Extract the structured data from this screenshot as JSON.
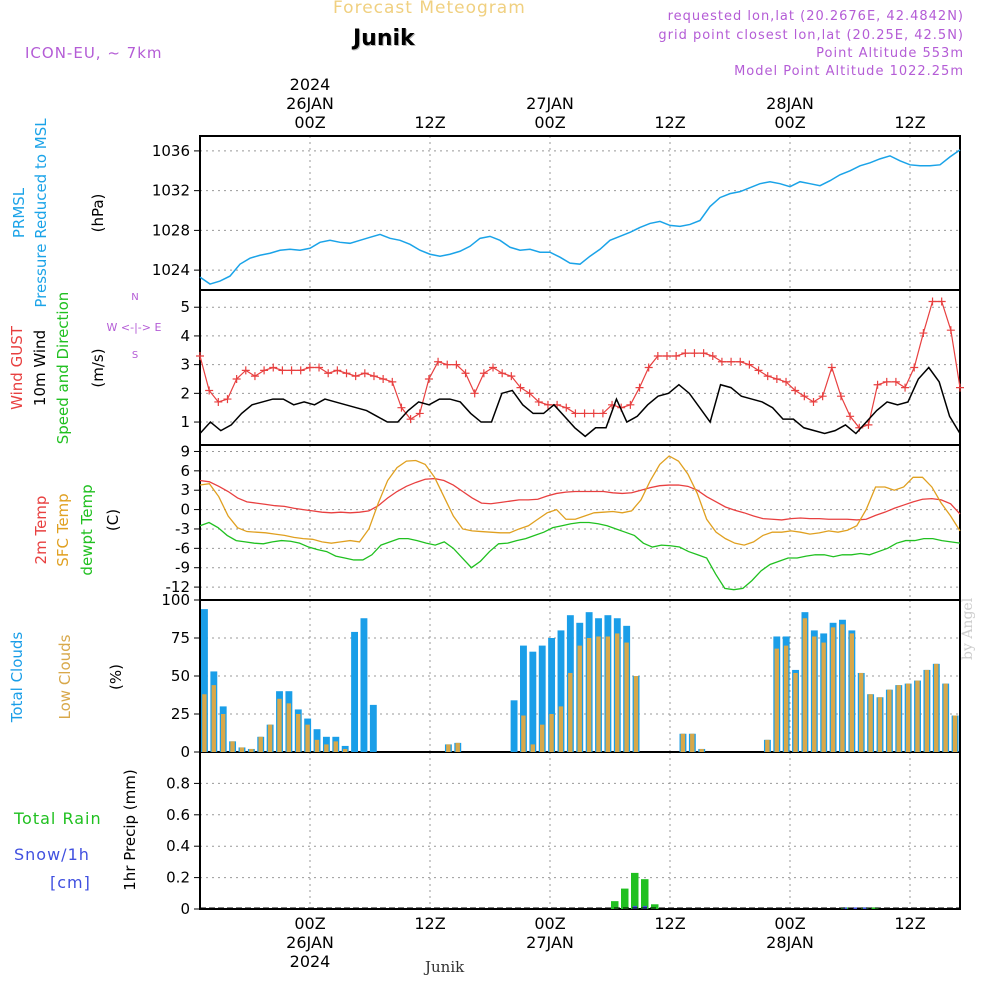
{
  "header": {
    "title": "Forecast Meteogram",
    "station": "Junik",
    "model": "ICON-EU, ~ 7km",
    "requested": "requested lon,lat (20.2676E, 42.4842N)",
    "gridpoint": "grid point closest lon,lat (20.25E, 42.5N)",
    "altitude": "Point Altitude 553m",
    "model_altitude": "Model Point Altitude 1022.25m",
    "bottom_station": "Junik",
    "credit": "by Angel"
  },
  "time_axis": {
    "top_labels": [
      {
        "lines": [
          "2024",
          "26JAN",
          "00Z"
        ],
        "h": 24
      },
      {
        "lines": [
          "12Z"
        ],
        "h": 36
      },
      {
        "lines": [
          "27JAN",
          "00Z"
        ],
        "h": 48
      },
      {
        "lines": [
          "12Z"
        ],
        "h": 60
      },
      {
        "lines": [
          "28JAN",
          "00Z"
        ],
        "h": 72
      },
      {
        "lines": [
          "12Z"
        ],
        "h": 84
      }
    ],
    "bottom_labels": [
      {
        "lines": [
          "00Z",
          "26JAN",
          "2024"
        ],
        "h": 24
      },
      {
        "lines": [
          "12Z"
        ],
        "h": 36
      },
      {
        "lines": [
          "00Z",
          "27JAN"
        ],
        "h": 48
      },
      {
        "lines": [
          "12Z"
        ],
        "h": 60
      },
      {
        "lines": [
          "00Z",
          "28JAN"
        ],
        "h": 72
      },
      {
        "lines": [
          "12Z"
        ],
        "h": 84
      }
    ],
    "range_hours": [
      13,
      89
    ]
  },
  "panel_labels": {
    "pressure": {
      "labels": [
        "PRMSL",
        "Pressure Reduced to MSL"
      ],
      "unit": "(hPa)"
    },
    "wind": {
      "labels": [
        "Wind GUST",
        "10m Wind",
        "Speed and Direction"
      ],
      "unit": "(m/s)",
      "compass": [
        "N",
        "W <-|-> E",
        "S"
      ]
    },
    "temp": {
      "labels": [
        "2m Temp",
        "SFC Temp",
        "dewpt Temp"
      ],
      "unit": "(C)"
    },
    "clouds": {
      "labels": [
        "Total Clouds",
        "Low Clouds"
      ],
      "unit": "(%)"
    },
    "precip": {
      "labels": [
        "Total  Rain",
        "Snow/1h",
        "[cm]"
      ],
      "unit": "1hr Precip (mm)"
    }
  },
  "colors": {
    "pressure": "#1aa3e8",
    "gust": "#e84040",
    "wind": "#000000",
    "t2m": "#e84040",
    "sfc": "#e0a020",
    "dewpt": "#20c020",
    "total_cloud": "#1a9ee8",
    "low_cloud": "#d8a84a",
    "rain": "#20c020",
    "snow": "#4050e0",
    "label_purple": "#b45cd6"
  },
  "chart_data": [
    {
      "type": "line",
      "name": "pressure",
      "ylim": [
        1022,
        1037.5
      ],
      "yticks": [
        1024,
        1028,
        1032,
        1036
      ],
      "series": [
        {
          "name": "PRMSL",
          "x": [
            13,
            14,
            15,
            16,
            17,
            18,
            19,
            20,
            21,
            22,
            23,
            24,
            25,
            26,
            27,
            28,
            29,
            30,
            31,
            32,
            33,
            34,
            35,
            36,
            37,
            38,
            39,
            40,
            41,
            42,
            43,
            44,
            45,
            46,
            47,
            48,
            49,
            50,
            51,
            52,
            53,
            54,
            55,
            56,
            57,
            58,
            59,
            60,
            61,
            62,
            63,
            64,
            65,
            66,
            67,
            68,
            69,
            70,
            71,
            72,
            73,
            74,
            75,
            76,
            77,
            78,
            79,
            80,
            81,
            82,
            83,
            84,
            85,
            86,
            87,
            88,
            89
          ],
          "values": [
            1023.3,
            1022.6,
            1022.9,
            1023.4,
            1024.6,
            1025.2,
            1025.5,
            1025.7,
            1026,
            1026.1,
            1026,
            1026.2,
            1026.8,
            1027,
            1026.8,
            1026.7,
            1027,
            1027.3,
            1027.6,
            1027.2,
            1027,
            1026.6,
            1026,
            1025.6,
            1025.4,
            1025.6,
            1025.9,
            1026.4,
            1027.2,
            1027.4,
            1027,
            1026.3,
            1026,
            1026.1,
            1025.8,
            1025.8,
            1025.3,
            1024.7,
            1024.6,
            1025.4,
            1026.1,
            1027,
            1027.4,
            1027.8,
            1028.3,
            1028.7,
            1028.9,
            1028.5,
            1028.4,
            1028.6,
            1029,
            1030.4,
            1031.3,
            1031.7,
            1031.9,
            1032.3,
            1032.7,
            1032.9,
            1032.7,
            1032.4,
            1032.9,
            1032.7,
            1032.5,
            1033,
            1033.6,
            1034,
            1034.5,
            1034.8,
            1035.2,
            1035.5,
            1035,
            1034.6,
            1034.5,
            1034.5,
            1034.6,
            1035.4,
            1036.1
          ]
        }
      ]
    },
    {
      "type": "line",
      "name": "wind",
      "ylim": [
        0.2,
        5.6
      ],
      "yticks": [
        1,
        2,
        3,
        4,
        5
      ],
      "series": [
        {
          "name": "Wind GUST",
          "values": [
            3.3,
            2.1,
            1.7,
            1.8,
            2.5,
            2.8,
            2.6,
            2.8,
            2.9,
            2.8,
            2.8,
            2.8,
            2.9,
            2.9,
            2.7,
            2.8,
            2.7,
            2.6,
            2.7,
            2.6,
            2.5,
            2.4,
            1.5,
            1.1,
            1.3,
            2.5,
            3.1,
            3.0,
            3.0,
            2.7,
            2.0,
            2.7,
            2.9,
            2.7,
            2.6,
            2.2,
            2.0,
            1.7,
            1.6,
            1.6,
            1.5,
            1.3,
            1.3,
            1.3,
            1.3,
            1.6,
            1.5,
            1.6,
            2.2,
            2.9,
            3.3,
            3.3,
            3.3,
            3.4,
            3.4,
            3.4,
            3.3,
            3.1,
            3.1,
            3.1,
            3.0,
            2.8,
            2.6,
            2.5,
            2.4,
            2.1,
            1.9,
            1.7,
            1.9,
            2.9,
            1.9,
            1.2,
            0.8,
            0.9,
            2.3,
            2.4,
            2.4,
            2.2,
            2.9,
            4.1,
            5.2,
            5.2,
            4.2,
            2.2
          ]
        },
        {
          "name": "10m Wind",
          "values": [
            0.6,
            1.0,
            0.7,
            0.9,
            1.3,
            1.6,
            1.7,
            1.8,
            1.8,
            1.6,
            1.7,
            1.6,
            1.8,
            1.7,
            1.6,
            1.5,
            1.4,
            1.2,
            1.0,
            1.0,
            1.4,
            1.7,
            1.6,
            1.8,
            1.8,
            1.7,
            1.3,
            1.0,
            1.0,
            2.0,
            2.1,
            1.6,
            1.3,
            1.3,
            1.6,
            1.2,
            0.8,
            0.5,
            0.8,
            0.8,
            1.8,
            1.0,
            1.2,
            1.6,
            1.9,
            2.0,
            2.3,
            2.0,
            1.5,
            1.0,
            2.3,
            2.2,
            1.9,
            1.8,
            1.7,
            1.5,
            1.1,
            1.1,
            0.8,
            0.7,
            0.6,
            0.7,
            0.9,
            0.6,
            1.0,
            1.4,
            1.7,
            1.6,
            1.7,
            2.5,
            2.9,
            2.4,
            1.2,
            0.6
          ]
        }
      ]
    },
    {
      "type": "line",
      "name": "temperature",
      "ylim": [
        -14,
        10
      ],
      "yticks": [
        9,
        6,
        3,
        0,
        -3,
        -6,
        -9,
        -12
      ],
      "series": [
        {
          "name": "2m Temp",
          "values": [
            4.5,
            4.3,
            3.6,
            2.8,
            1.8,
            1.2,
            1.0,
            0.8,
            0.6,
            0.5,
            0.2,
            0.0,
            -0.2,
            -0.4,
            -0.5,
            -0.4,
            -0.5,
            -0.4,
            -0.2,
            0.6,
            1.8,
            2.8,
            3.6,
            4.2,
            4.7,
            4.8,
            4.5,
            3.8,
            2.8,
            1.8,
            1.0,
            0.9,
            1.1,
            1.3,
            1.5,
            1.5,
            1.6,
            2.1,
            2.5,
            2.7,
            2.8,
            2.8,
            2.8,
            2.8,
            2.6,
            2.5,
            2.6,
            3.0,
            3.4,
            3.7,
            3.8,
            3.8,
            3.6,
            3.0,
            2.0,
            1.2,
            0.4,
            -0.1,
            -0.5,
            -1.0,
            -1.4,
            -1.5,
            -1.6,
            -1.4,
            -1.3,
            -1.4,
            -1.4,
            -1.5,
            -1.5,
            -1.5,
            -1.6,
            -1.5,
            -0.9,
            -0.4,
            0.2,
            0.7,
            1.2,
            1.6,
            1.7,
            1.5,
            0.9,
            -0.7
          ]
        },
        {
          "name": "SFC Temp",
          "values": [
            3.8,
            4.0,
            2.0,
            -1.0,
            -2.8,
            -3.4,
            -3.5,
            -3.6,
            -3.8,
            -4.0,
            -4.3,
            -4.5,
            -4.6,
            -5.0,
            -5.2,
            -5.0,
            -4.8,
            -5.0,
            -3.0,
            1.0,
            4.5,
            6.5,
            7.5,
            7.6,
            7.0,
            5.0,
            2.0,
            -1.0,
            -3.0,
            -3.3,
            -3.4,
            -3.5,
            -3.6,
            -3.6,
            -3.0,
            -2.5,
            -1.5,
            -0.5,
            0.0,
            -1.5,
            -1.5,
            -1.0,
            -0.5,
            -0.4,
            -0.3,
            -0.5,
            -0.2,
            1.5,
            4.5,
            7.0,
            8.3,
            7.5,
            5.5,
            2.5,
            -1.5,
            -3.5,
            -4.5,
            -5.2,
            -5.5,
            -5.0,
            -4.0,
            -3.5,
            -3.5,
            -3.3,
            -3.5,
            -3.8,
            -3.6,
            -3.3,
            -3.5,
            -3.2,
            -2.5,
            0.0,
            3.5,
            3.5,
            3.0,
            3.5,
            5.0,
            5.0,
            3.5,
            1.0,
            -1.0,
            -3.3
          ]
        },
        {
          "name": "dewpt Temp",
          "values": [
            -2.5,
            -2.0,
            -2.8,
            -4.0,
            -4.8,
            -5.0,
            -5.2,
            -5.3,
            -5.0,
            -4.8,
            -4.9,
            -5.2,
            -5.8,
            -6.2,
            -6.5,
            -7.2,
            -7.5,
            -7.8,
            -7.8,
            -7.0,
            -5.5,
            -5.0,
            -4.5,
            -4.5,
            -4.8,
            -5.2,
            -5.5,
            -5.0,
            -6.0,
            -7.5,
            -9.0,
            -8.0,
            -6.5,
            -5.3,
            -5.2,
            -4.8,
            -4.5,
            -4.0,
            -3.5,
            -2.8,
            -2.5,
            -2.2,
            -2.0,
            -2.0,
            -2.2,
            -2.5,
            -3.0,
            -3.5,
            -4.0,
            -5.2,
            -5.8,
            -5.5,
            -5.6,
            -5.8,
            -6.5,
            -7.0,
            -7.5,
            -10.0,
            -12.2,
            -12.4,
            -12.2,
            -11.0,
            -9.5,
            -8.5,
            -8.0,
            -7.5,
            -7.5,
            -7.2,
            -7.0,
            -7.0,
            -7.3,
            -7.0,
            -7.0,
            -6.8,
            -7.0,
            -6.5,
            -6.0,
            -5.2,
            -4.8,
            -4.8,
            -4.5,
            -4.5,
            -4.8,
            -5.0,
            -5.2
          ]
        }
      ]
    },
    {
      "type": "bar",
      "name": "clouds",
      "ylim": [
        0,
        100
      ],
      "yticks": [
        0,
        25,
        50,
        75,
        100
      ],
      "series": [
        {
          "name": "Total Clouds",
          "values": [
            94,
            53,
            30,
            7,
            3,
            2,
            10,
            18,
            40,
            40,
            28,
            22,
            15,
            10,
            10,
            4,
            79,
            88,
            31,
            0,
            0,
            0,
            0,
            0,
            0,
            0,
            5,
            6,
            0,
            0,
            0,
            0,
            0,
            34,
            70,
            66,
            70,
            75,
            80,
            90,
            85,
            92,
            88,
            90,
            88,
            83,
            50,
            0,
            0,
            0,
            0,
            12,
            12,
            2,
            0,
            0,
            0,
            0,
            0,
            0,
            8,
            76,
            76,
            54,
            92,
            80,
            78,
            85,
            87,
            80,
            52,
            38,
            36,
            41,
            44,
            45,
            47,
            54,
            58,
            45,
            24
          ]
        },
        {
          "name": "Low Clouds",
          "values": [
            38,
            44,
            25,
            7,
            3,
            2,
            10,
            18,
            35,
            32,
            25,
            18,
            8,
            5,
            7,
            2,
            0,
            0,
            0,
            0,
            0,
            0,
            0,
            0,
            0,
            0,
            5,
            6,
            0,
            0,
            0,
            0,
            0,
            0,
            24,
            5,
            18,
            25,
            30,
            52,
            70,
            75,
            76,
            76,
            78,
            72,
            50,
            0,
            0,
            0,
            0,
            12,
            12,
            2,
            0,
            0,
            0,
            0,
            0,
            0,
            8,
            68,
            70,
            52,
            88,
            76,
            72,
            82,
            84,
            78,
            52,
            38,
            36,
            41,
            44,
            45,
            47,
            54,
            58,
            45,
            24
          ]
        }
      ]
    },
    {
      "type": "bar",
      "name": "precip",
      "ylim": [
        0,
        1.0
      ],
      "yticks": [
        0,
        0.2,
        0.4,
        0.6,
        0.8
      ],
      "series": [
        {
          "name": "Total Rain",
          "values": [
            0,
            0,
            0,
            0,
            0,
            0,
            0,
            0,
            0,
            0,
            0,
            0,
            0,
            0,
            0,
            0,
            0,
            0,
            0,
            0,
            0,
            0,
            0,
            0,
            0,
            0,
            0,
            0,
            0,
            0,
            0,
            0,
            0,
            0,
            0,
            0,
            0,
            0,
            0,
            0,
            0,
            0.05,
            0.13,
            0.23,
            0.19,
            0.03,
            0,
            0,
            0,
            0,
            0,
            0,
            0,
            0,
            0,
            0,
            0,
            0,
            0,
            0,
            0,
            0,
            0,
            0,
            0.01,
            0,
            0.01,
            0.01,
            0,
            0,
            0,
            0,
            0,
            0,
            0,
            0
          ]
        },
        {
          "name": "Snow/1h",
          "values": [
            0,
            0,
            0,
            0,
            0,
            0,
            0,
            0,
            0,
            0,
            0,
            0,
            0,
            0,
            0,
            0,
            0,
            0,
            0,
            0,
            0,
            0,
            0,
            0,
            0,
            0,
            0,
            0,
            0,
            0,
            0,
            0,
            0,
            0,
            0,
            0,
            0,
            0,
            0,
            0,
            0,
            0,
            0,
            0.02,
            0.02,
            0,
            0,
            0,
            0,
            0,
            0,
            0,
            0,
            0,
            0,
            0,
            0,
            0,
            0,
            0,
            0,
            0,
            0,
            0,
            0.01,
            0.01,
            0.01,
            0,
            0,
            0,
            0,
            0,
            0,
            0,
            0,
            0
          ]
        }
      ]
    }
  ]
}
